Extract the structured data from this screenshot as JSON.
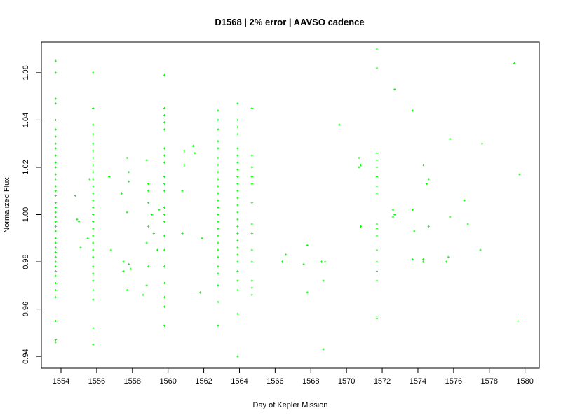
{
  "chart_data": {
    "type": "scatter",
    "title": "D1568 | 2% error | AAVSO cadence",
    "xlabel": "Day of Kepler Mission",
    "ylabel": "Normalized Flux",
    "xlim": [
      1552.9,
      1580.8
    ],
    "ylim": [
      0.935,
      1.073
    ],
    "x_ticks": [
      1554,
      1556,
      1558,
      1560,
      1562,
      1564,
      1566,
      1568,
      1570,
      1572,
      1574,
      1576,
      1578,
      1580
    ],
    "y_ticks": [
      0.94,
      0.96,
      0.98,
      1.0,
      1.02,
      1.04,
      1.06
    ],
    "y_tick_labels": [
      "0.94",
      "0.96",
      "0.98",
      "1.00",
      "1.02",
      "1.04",
      "1.06"
    ],
    "point_color": "#00ff00",
    "grid": false,
    "clusters": [
      {
        "x": 1553.7,
        "ys": [
          1.065,
          1.06,
          1.049,
          1.047,
          1.04,
          1.036,
          1.033,
          1.03,
          1.028,
          1.025,
          1.022,
          1.02,
          1.017,
          1.015,
          1.012,
          1.01,
          1.008,
          1.005,
          1.003,
          1.001,
          0.999,
          0.997,
          0.995,
          0.993,
          0.99,
          0.988,
          0.986,
          0.984,
          0.982,
          0.98,
          0.978,
          0.976,
          0.974,
          0.971,
          0.968,
          0.965,
          0.955,
          0.947,
          0.946
        ]
      },
      {
        "x": 1555.8,
        "ys": [
          1.06,
          1.045,
          1.038,
          1.034,
          1.03,
          1.027,
          1.024,
          1.021,
          1.018,
          1.015,
          1.012,
          1.009,
          1.006,
          1.003,
          1.0,
          0.997,
          0.994,
          0.991,
          0.988,
          0.985,
          0.982,
          0.978,
          0.975,
          0.972,
          0.968,
          0.964,
          0.952,
          0.945
        ]
      },
      {
        "x": 1559.8,
        "ys": [
          1.059,
          1.045,
          1.042,
          1.039,
          1.036,
          1.028,
          1.025,
          1.022,
          1.016,
          1.013,
          1.01,
          1.003,
          1.0,
          0.997,
          0.991,
          0.985,
          0.978,
          0.971,
          0.965,
          0.961,
          0.953
        ]
      },
      {
        "x": 1562.8,
        "ys": [
          1.044,
          1.04,
          1.036,
          1.031,
          1.028,
          1.024,
          1.021,
          1.018,
          1.015,
          1.012,
          1.009,
          1.006,
          1.003,
          1.0,
          0.997,
          0.994,
          0.991,
          0.988,
          0.985,
          0.982,
          0.978,
          0.975,
          0.97,
          0.963,
          0.953
        ]
      },
      {
        "x": 1563.9,
        "ys": [
          1.047,
          1.04,
          1.037,
          1.034,
          1.028,
          1.025,
          1.022,
          1.019,
          1.016,
          1.013,
          1.01,
          1.007,
          1.004,
          1.001,
          0.998,
          0.995,
          0.992,
          0.989,
          0.986,
          0.983,
          0.98,
          0.976,
          0.972,
          0.968,
          0.958,
          0.94
        ]
      },
      {
        "x": 1564.7,
        "ys": [
          1.045,
          1.025,
          1.02,
          1.016,
          1.013,
          1.005,
          0.996,
          0.992,
          0.985,
          0.98,
          0.972,
          0.969,
          0.966
        ]
      },
      {
        "x": 1571.7,
        "ys": [
          1.07,
          1.062,
          1.026,
          1.023,
          1.02,
          1.016,
          1.012,
          1.009,
          0.996,
          0.994,
          0.991,
          0.985,
          0.98,
          0.976,
          0.972,
          0.957,
          0.956
        ]
      }
    ],
    "points": [
      [
        1554.8,
        1.008
      ],
      [
        1554.9,
        0.998
      ],
      [
        1555.0,
        0.997
      ],
      [
        1555.1,
        0.986
      ],
      [
        1555.5,
        0.99
      ],
      [
        1555.6,
        1.015
      ],
      [
        1556.7,
        1.016
      ],
      [
        1556.8,
        0.985
      ],
      [
        1557.4,
        1.009
      ],
      [
        1557.5,
        0.976
      ],
      [
        1557.5,
        0.98
      ],
      [
        1557.7,
        1.024
      ],
      [
        1557.7,
        1.001
      ],
      [
        1557.8,
        1.018
      ],
      [
        1557.8,
        1.014
      ],
      [
        1557.8,
        0.979
      ],
      [
        1557.9,
        0.977
      ],
      [
        1557.7,
        0.968
      ],
      [
        1558.8,
        1.023
      ],
      [
        1558.9,
        1.013
      ],
      [
        1558.9,
        1.01
      ],
      [
        1558.9,
        1.005
      ],
      [
        1558.9,
        0.995
      ],
      [
        1558.8,
        0.988
      ],
      [
        1558.9,
        0.978
      ],
      [
        1558.8,
        0.97
      ],
      [
        1558.6,
        0.966
      ],
      [
        1559.1,
        1.0
      ],
      [
        1559.2,
        0.992
      ],
      [
        1559.4,
        0.985
      ],
      [
        1559.5,
        1.002
      ],
      [
        1560.9,
        1.027
      ],
      [
        1560.9,
        1.021
      ],
      [
        1560.8,
        1.01
      ],
      [
        1560.8,
        0.992
      ],
      [
        1561.4,
        1.029
      ],
      [
        1561.5,
        1.026
      ],
      [
        1561.9,
        0.99
      ],
      [
        1561.8,
        0.967
      ],
      [
        1566.4,
        0.98
      ],
      [
        1566.6,
        0.983
      ],
      [
        1567.6,
        0.979
      ],
      [
        1567.8,
        0.987
      ],
      [
        1567.8,
        0.967
      ],
      [
        1568.6,
        0.98
      ],
      [
        1568.7,
        0.972
      ],
      [
        1568.8,
        0.98
      ],
      [
        1568.7,
        0.943
      ],
      [
        1569.6,
        1.038
      ],
      [
        1570.7,
        1.024
      ],
      [
        1570.7,
        1.02
      ],
      [
        1570.8,
        1.021
      ],
      [
        1570.8,
        0.995
      ],
      [
        1572.6,
        1.002
      ],
      [
        1572.6,
        0.999
      ],
      [
        1572.7,
        1.0
      ],
      [
        1572.7,
        1.053
      ],
      [
        1573.7,
        1.044
      ],
      [
        1573.7,
        1.002
      ],
      [
        1573.8,
        0.993
      ],
      [
        1573.7,
        0.981
      ],
      [
        1574.3,
        1.021
      ],
      [
        1574.3,
        0.98
      ],
      [
        1574.3,
        0.981
      ],
      [
        1574.5,
        1.013
      ],
      [
        1574.6,
        1.015
      ],
      [
        1574.6,
        0.995
      ],
      [
        1575.6,
        0.98
      ],
      [
        1575.7,
        0.982
      ],
      [
        1575.8,
        0.999
      ],
      [
        1575.8,
        1.032
      ],
      [
        1576.6,
        1.006
      ],
      [
        1576.8,
        0.996
      ],
      [
        1577.6,
        1.03
      ],
      [
        1577.5,
        0.985
      ],
      [
        1579.4,
        1.064
      ],
      [
        1579.6,
        0.955
      ],
      [
        1579.7,
        1.017
      ]
    ]
  }
}
